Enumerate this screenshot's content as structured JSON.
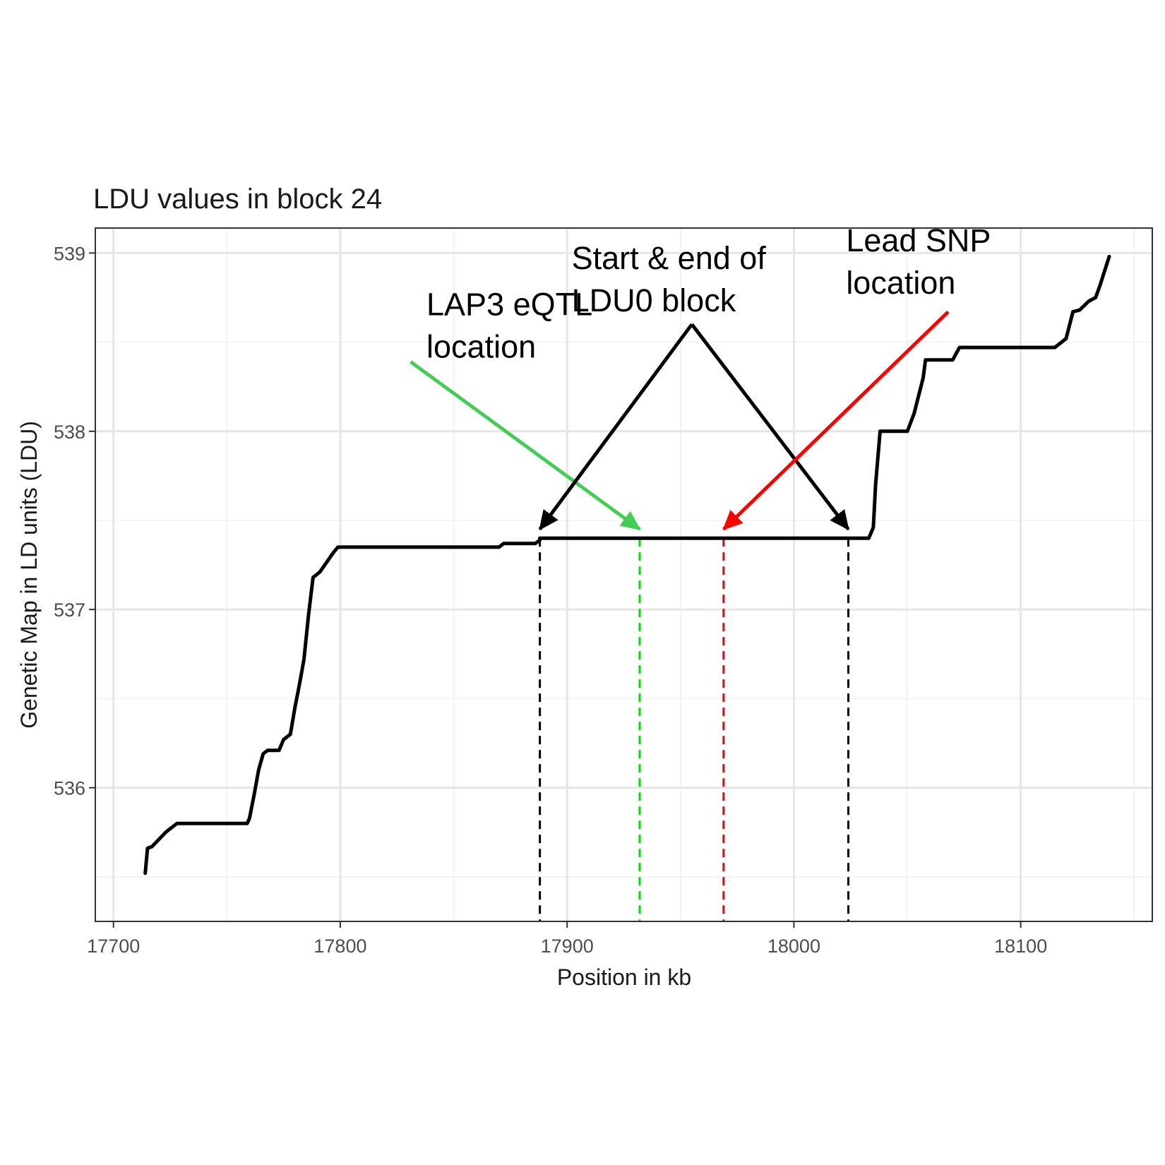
{
  "chart_data": {
    "type": "line",
    "title": "LDU values in block 24",
    "xlabel": "Position in kb",
    "ylabel": "Genetic Map in LD units (LDU)",
    "xlim": [
      17692,
      18158
    ],
    "ylim": [
      535.25,
      539.14
    ],
    "xticks": [
      17700,
      17800,
      17900,
      18000,
      18100
    ],
    "xtick_labels": [
      "17700",
      "17800",
      "17900",
      "18000",
      "18100"
    ],
    "yticks": [
      536,
      537,
      538,
      539
    ],
    "ytick_labels": [
      "536",
      "537",
      "538",
      "539"
    ],
    "grid": true,
    "series": [
      {
        "color": "#000000",
        "points": [
          [
            17714,
            535.52
          ],
          [
            17715,
            535.66
          ],
          [
            17717,
            535.67
          ],
          [
            17723,
            535.75
          ],
          [
            17728,
            535.8
          ],
          [
            17740,
            535.8
          ],
          [
            17759,
            535.8
          ],
          [
            17760,
            535.83
          ],
          [
            17762,
            535.96
          ],
          [
            17764,
            536.1
          ],
          [
            17766,
            536.19
          ],
          [
            17768,
            536.21
          ],
          [
            17773,
            536.21
          ],
          [
            17775,
            536.27
          ],
          [
            17778,
            536.3
          ],
          [
            17780,
            536.45
          ],
          [
            17782,
            536.58
          ],
          [
            17784,
            536.72
          ],
          [
            17786,
            536.97
          ],
          [
            17788,
            537.18
          ],
          [
            17791,
            537.21
          ],
          [
            17797,
            537.32
          ],
          [
            17799,
            537.35
          ],
          [
            17830,
            537.35
          ],
          [
            17870,
            537.35
          ],
          [
            17872,
            537.37
          ],
          [
            17886,
            537.37
          ],
          [
            17888,
            537.39
          ],
          [
            17888,
            537.4
          ],
          [
            17950,
            537.4
          ],
          [
            18000,
            537.4
          ],
          [
            18033,
            537.4
          ],
          [
            18035,
            537.46
          ],
          [
            18036,
            537.7
          ],
          [
            18038,
            538.0
          ],
          [
            18050,
            538.0
          ],
          [
            18053,
            538.1
          ],
          [
            18055,
            538.2
          ],
          [
            18057,
            538.3
          ],
          [
            18058,
            538.4
          ],
          [
            18070,
            538.4
          ],
          [
            18073,
            538.47
          ],
          [
            18090,
            538.47
          ],
          [
            18115,
            538.47
          ],
          [
            18118,
            538.5
          ],
          [
            18120,
            538.52
          ],
          [
            18123,
            538.67
          ],
          [
            18126,
            538.68
          ],
          [
            18130,
            538.73
          ],
          [
            18133,
            538.75
          ],
          [
            18135,
            538.82
          ],
          [
            18137,
            538.9
          ],
          [
            18139,
            538.98
          ]
        ]
      }
    ],
    "vlines": [
      {
        "x": 17888,
        "color": "#000000"
      },
      {
        "x": 17932,
        "color": "#00dd00"
      },
      {
        "x": 17969,
        "color": "#ee0000"
      },
      {
        "x": 18024,
        "color": "#000000"
      }
    ],
    "annotations": [
      {
        "lines": [
          "LAP3 eQTL",
          "location"
        ],
        "anchor": [
          17838,
          538.65
        ],
        "arrows": [
          {
            "from": [
              17831,
              538.39
            ],
            "to": [
              17932,
              537.45
            ],
            "color": "#44cc55"
          }
        ]
      },
      {
        "lines": [
          "Start & end of",
          "LDU0 block"
        ],
        "anchor": [
          17902,
          538.91
        ],
        "arrows": [
          {
            "from": [
              17955,
              538.6
            ],
            "to": [
              17888,
              537.45
            ],
            "color": "#000000"
          },
          {
            "from": [
              17955,
              538.6
            ],
            "to": [
              18024,
              537.45
            ],
            "color": "#000000"
          }
        ]
      },
      {
        "lines": [
          "Lead SNP",
          "location"
        ],
        "anchor": [
          18023,
          539.01
        ],
        "arrows": [
          {
            "from": [
              18068,
              538.67
            ],
            "to": [
              17969,
              537.45
            ],
            "color": "#ff0000"
          }
        ]
      }
    ]
  }
}
